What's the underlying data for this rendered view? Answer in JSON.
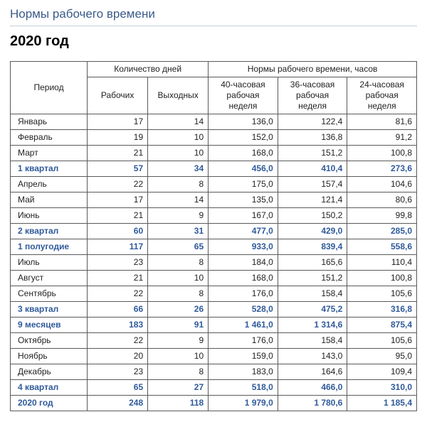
{
  "header": {
    "title": "Нормы рабочего времени",
    "year": "2020 год"
  },
  "columns": {
    "period": "Период",
    "days": "Количество дней",
    "norms": "Нормы рабочего времени, часов",
    "work": "Рабочих",
    "rest": "Выходных",
    "w40": "40-часовая рабочая неделя",
    "w36": "36-часовая рабочая неделя",
    "w24": "24-часовая рабочая неделя"
  },
  "rows": [
    {
      "summary": false,
      "period": "Январь",
      "work": "17",
      "rest": "14",
      "w40": "136,0",
      "w36": "122,4",
      "w24": "81,6"
    },
    {
      "summary": false,
      "period": "Февраль",
      "work": "19",
      "rest": "10",
      "w40": "152,0",
      "w36": "136,8",
      "w24": "91,2"
    },
    {
      "summary": false,
      "period": "Март",
      "work": "21",
      "rest": "10",
      "w40": "168,0",
      "w36": "151,2",
      "w24": "100,8"
    },
    {
      "summary": true,
      "period": "1 квартал",
      "work": "57",
      "rest": "34",
      "w40": "456,0",
      "w36": "410,4",
      "w24": "273,6"
    },
    {
      "summary": false,
      "period": "Апрель",
      "work": "22",
      "rest": "8",
      "w40": "175,0",
      "w36": "157,4",
      "w24": "104,6"
    },
    {
      "summary": false,
      "period": "Май",
      "work": "17",
      "rest": "14",
      "w40": "135,0",
      "w36": "121,4",
      "w24": "80,6"
    },
    {
      "summary": false,
      "period": "Июнь",
      "work": "21",
      "rest": "9",
      "w40": "167,0",
      "w36": "150,2",
      "w24": "99,8"
    },
    {
      "summary": true,
      "period": "2 квартал",
      "work": "60",
      "rest": "31",
      "w40": "477,0",
      "w36": "429,0",
      "w24": "285,0"
    },
    {
      "summary": true,
      "period": "1 полугодие",
      "work": "117",
      "rest": "65",
      "w40": "933,0",
      "w36": "839,4",
      "w24": "558,6"
    },
    {
      "summary": false,
      "period": "Июль",
      "work": "23",
      "rest": "8",
      "w40": "184,0",
      "w36": "165,6",
      "w24": "110,4"
    },
    {
      "summary": false,
      "period": "Август",
      "work": "21",
      "rest": "10",
      "w40": "168,0",
      "w36": "151,2",
      "w24": "100,8"
    },
    {
      "summary": false,
      "period": "Сентябрь",
      "work": "22",
      "rest": "8",
      "w40": "176,0",
      "w36": "158,4",
      "w24": "105,6"
    },
    {
      "summary": true,
      "period": "3 квартал",
      "work": "66",
      "rest": "26",
      "w40": "528,0",
      "w36": "475,2",
      "w24": "316,8"
    },
    {
      "summary": true,
      "period": "9 месяцев",
      "work": "183",
      "rest": "91",
      "w40": "1 461,0",
      "w36": "1 314,6",
      "w24": "875,4"
    },
    {
      "summary": false,
      "period": "Октябрь",
      "work": "22",
      "rest": "9",
      "w40": "176,0",
      "w36": "158,4",
      "w24": "105,6"
    },
    {
      "summary": false,
      "period": "Ноябрь",
      "work": "20",
      "rest": "10",
      "w40": "159,0",
      "w36": "143,0",
      "w24": "95,0"
    },
    {
      "summary": false,
      "period": "Декабрь",
      "work": "23",
      "rest": "8",
      "w40": "183,0",
      "w36": "164,6",
      "w24": "109,4"
    },
    {
      "summary": true,
      "period": "4 квартал",
      "work": "65",
      "rest": "27",
      "w40": "518,0",
      "w36": "466,0",
      "w24": "310,0"
    },
    {
      "summary": true,
      "period": "2020 год",
      "work": "248",
      "rest": "118",
      "w40": "1 979,0",
      "w36": "1 780,6",
      "w24": "1 185,4"
    }
  ]
}
